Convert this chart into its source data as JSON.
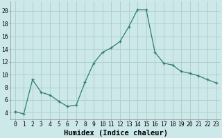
{
  "x": [
    0,
    1,
    2,
    3,
    4,
    5,
    6,
    7,
    8,
    9,
    10,
    11,
    12,
    13,
    14,
    15,
    16,
    17,
    18,
    19,
    20,
    21,
    22,
    23
  ],
  "y": [
    4.2,
    3.8,
    9.2,
    7.2,
    6.8,
    5.8,
    5.0,
    5.2,
    8.8,
    11.8,
    13.5,
    14.2,
    15.2,
    17.5,
    20.2,
    20.2,
    13.5,
    11.8,
    11.5,
    10.5,
    10.2,
    9.8,
    9.2,
    8.7
  ],
  "line_color": "#2e7d6e",
  "marker": "+",
  "marker_size": 3.5,
  "xlabel": "Humidex (Indice chaleur)",
  "xlabel_fontsize": 7.5,
  "ylabel_ticks": [
    4,
    6,
    8,
    10,
    12,
    14,
    16,
    18,
    20
  ],
  "ylim": [
    3.0,
    21.5
  ],
  "xlim": [
    -0.5,
    23.5
  ],
  "background_color": "#cce8e8",
  "grid_color": "#b0d0d0",
  "tick_fontsize": 5.8
}
